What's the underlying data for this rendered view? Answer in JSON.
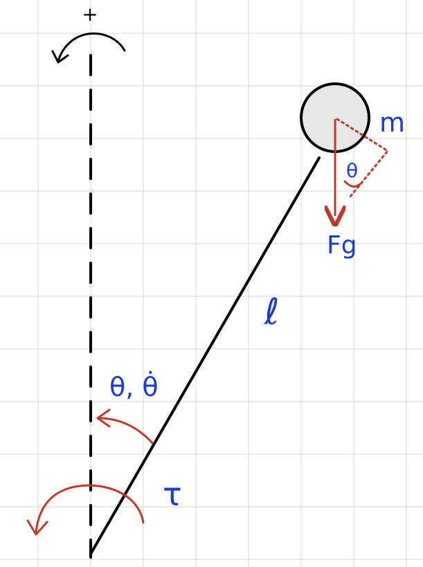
{
  "labels": {
    "plus": "+",
    "mass": "m",
    "theta_small": "θ",
    "gravity": "Fg",
    "length": "ℓ",
    "theta_dot": "θ, θ̇",
    "torque": "τ"
  },
  "colors": {
    "background": "#ffffff",
    "grid": "#d6d6d6",
    "ink": "#000000",
    "red": "#c0392b",
    "blue": "#1a3bd6",
    "bob_fill": "#e6e6e6"
  }
}
